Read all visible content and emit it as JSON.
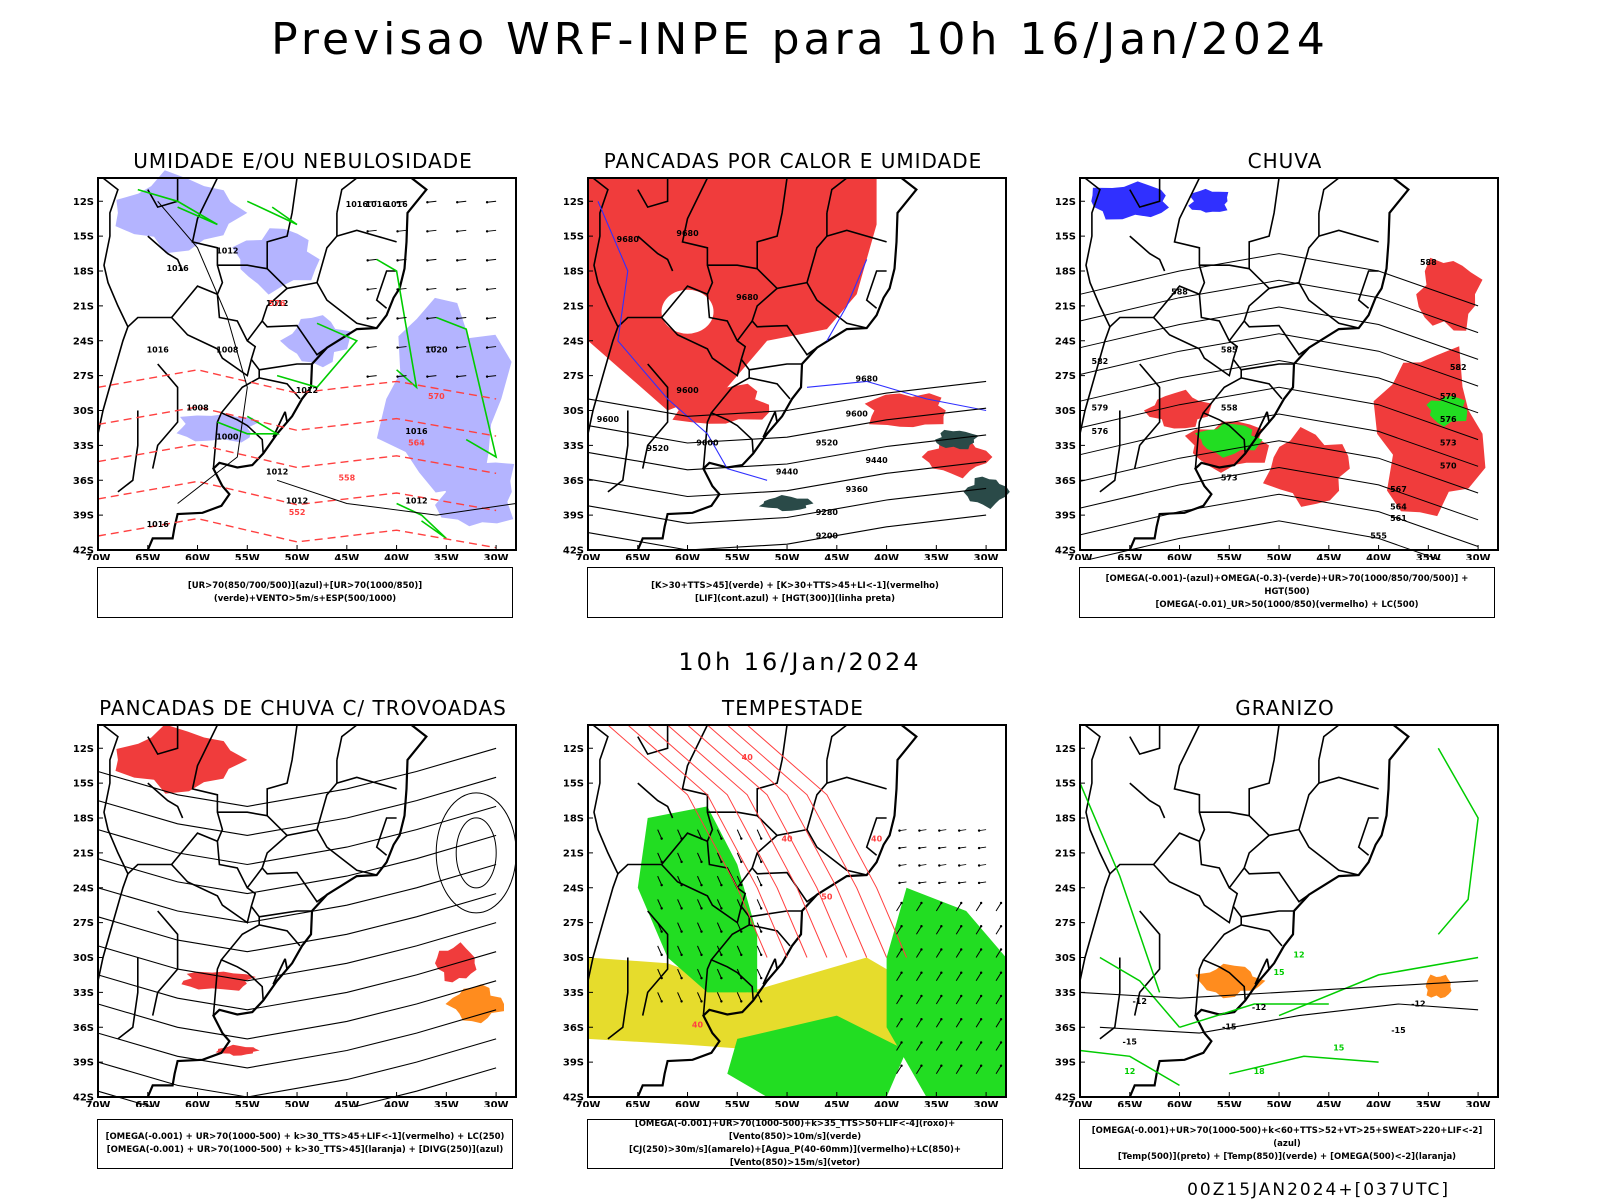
{
  "header": {
    "title": "Previsao WRF-INPE  para 10h 16/Jan/2024"
  },
  "middle_label": "10h 16/Jan/2024",
  "footer": "00Z15JAN2024+[037UTC]",
  "axes": {
    "lat_labels": [
      "12S",
      "15S",
      "18S",
      "21S",
      "24S",
      "27S",
      "30S",
      "33S",
      "36S",
      "39S",
      "42S"
    ],
    "lon_labels": [
      "70W",
      "65W",
      "60W",
      "55W",
      "50W",
      "45W",
      "40W",
      "35W",
      "30W"
    ]
  },
  "panels": [
    {
      "title": "UMIDADE E/OU NEBULOSIDADE",
      "legend": [
        "[UR>70(850/700/500)](azul)+[UR>70(1000/850)](verde)+VENTO>5m/s+ESP(500/1000)"
      ],
      "contour_labels": [
        "1016",
        "1016",
        "1016",
        "1012",
        "1016",
        "1012",
        "1008",
        "1008",
        "1020",
        "1012",
        "1016",
        "1000",
        "1012",
        "1012",
        "1016",
        "1016",
        "1012",
        "576",
        "570",
        "564",
        "558",
        "552"
      ]
    },
    {
      "title": "PANCADAS POR CALOR E UMIDADE",
      "legend": [
        "[K>30+TTS>45](verde) + [K>30+TTS>45+LI<-1](vermelho)",
        "[LIF](cont.azul) + [HGT(300)](linha preta)"
      ],
      "contour_labels": [
        "9680",
        "9680",
        "9680",
        "9600",
        "9600",
        "9520",
        "9440",
        "9440",
        "9360",
        "9280",
        "9200",
        "9520",
        "9600",
        "9680",
        "9600"
      ]
    },
    {
      "title": "CHUVA",
      "legend": [
        "[OMEGA(-0.001)-(azul)+OMEGA(-0.3)-(verde)+UR>70(1000/850/700/500)] + HGT(500)",
        "[OMEGA(-0.01)_UR>50(1000/850)(vermelho) + LC(500)"
      ],
      "contour_labels": [
        "588",
        "588",
        "585",
        "582",
        "579",
        "576",
        "573",
        "570",
        "567",
        "564",
        "561",
        "558",
        "555",
        "582",
        "579",
        "576",
        "573"
      ]
    },
    {
      "title": "PANCADAS DE CHUVA C/ TROVOADAS",
      "legend": [
        "[OMEGA(-0.001) + UR>70(1000-500) + k>30_TTS>45+LIF<-1](vermelho) + LC(250)",
        "[OMEGA(-0.001) + UR>70(1000-500) + k>30_TTS>45](laranja) + [DIVG(250)](azul)"
      ],
      "contour_labels": []
    },
    {
      "title": "TEMPESTADE",
      "legend": [
        "[OMEGA(-0.001)+UR>70(1000-500)+k>35_TTS>50+LIF<-4](roxo)+[Vento(850)>10m/s](verde)",
        "[CJ(250)>30m/s](amarelo)+[Agua_P(40-60mm)](vermelho)+LC(850)+[Vento(850)>15m/s](vetor)"
      ],
      "contour_labels": [
        "40",
        "40",
        "40",
        "50",
        "40"
      ]
    },
    {
      "title": "GRANIZO",
      "legend": [
        "[OMEGA(-0.001)+UR>70(1000-500)+k<60+TTS>52+VT>25+SWEAT>220+LIF<-2](azul)",
        "[Temp(500)](preto) + [Temp(850)](verde) + [OMEGA(500)<-2](laranja)"
      ],
      "contour_labels": [
        "-12",
        "-15",
        "-12",
        "-15",
        "-12",
        "-15",
        "12",
        "15",
        "18",
        "12",
        "15"
      ]
    }
  ],
  "colors": {
    "blue_fill": "#b4b4ff",
    "dark_blue": "#3030ff",
    "green": "#00cc00",
    "red_fill": "#f03c3c",
    "red_line": "#ff4040",
    "dark_teal": "#2a4a48",
    "yellow": "#e6dc2c",
    "orange": "#ff8c1e",
    "bright_green": "#22dd22"
  }
}
